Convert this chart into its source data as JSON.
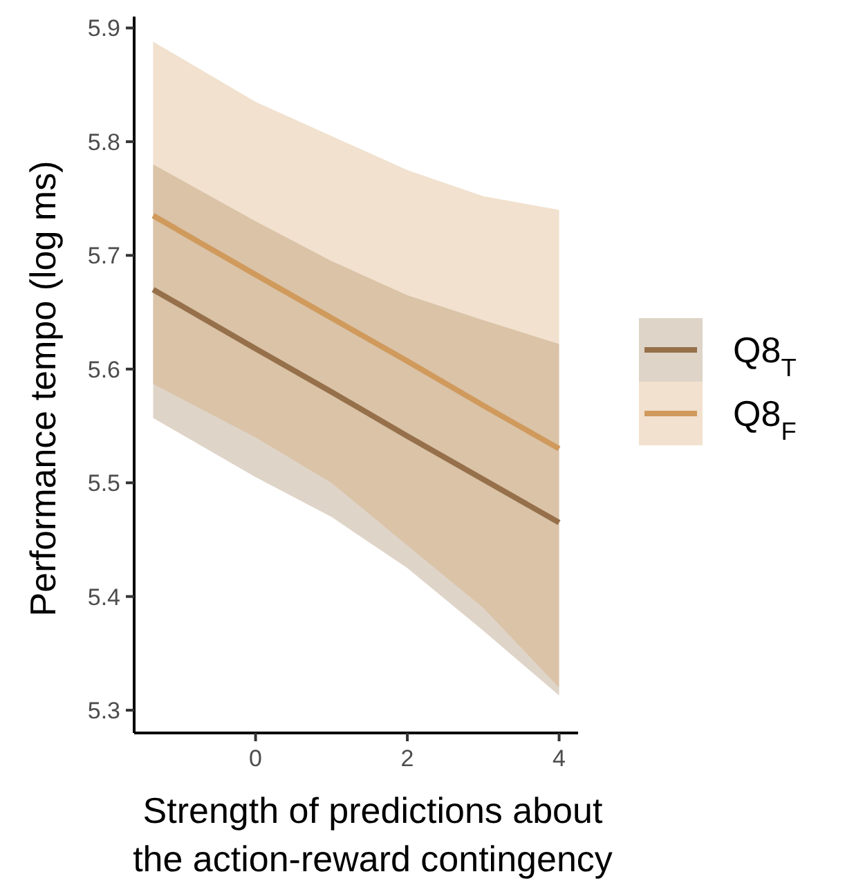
{
  "chart_data": {
    "type": "line",
    "xlabel": "Strength of predictions about\nthe action-reward contingency",
    "ylabel": "Performance tempo (log ms)",
    "xlim": [
      -1.6,
      4.25
    ],
    "xticks": [
      0,
      2,
      4
    ],
    "ylim": [
      5.28,
      5.91
    ],
    "yticks": [
      5.3,
      5.4,
      5.5,
      5.6,
      5.7,
      5.8,
      5.9
    ],
    "grid": false,
    "legend": "right",
    "marker": "none",
    "line_style": "solid",
    "series": [
      {
        "name": "Q8$_{T}$",
        "color": "#96704a",
        "x": [
          -1.35,
          0,
          1,
          2,
          3,
          4
        ],
        "values": [
          5.67,
          5.618,
          5.58,
          5.541,
          5.503,
          5.465
        ],
        "lower": [
          5.557,
          5.505,
          5.47,
          5.425,
          5.37,
          5.313
        ],
        "upper": [
          5.78,
          5.73,
          5.695,
          5.665,
          5.643,
          5.622
        ]
      },
      {
        "name": "Q8$_{F}$",
        "color": "#d09a5c",
        "x": [
          -1.35,
          0,
          1,
          2,
          3,
          4
        ],
        "values": [
          5.735,
          5.683,
          5.645,
          5.607,
          5.568,
          5.53
        ],
        "lower": [
          5.587,
          5.54,
          5.5,
          5.445,
          5.39,
          5.32
        ],
        "upper": [
          5.888,
          5.835,
          5.805,
          5.775,
          5.752,
          5.74
        ]
      }
    ]
  }
}
